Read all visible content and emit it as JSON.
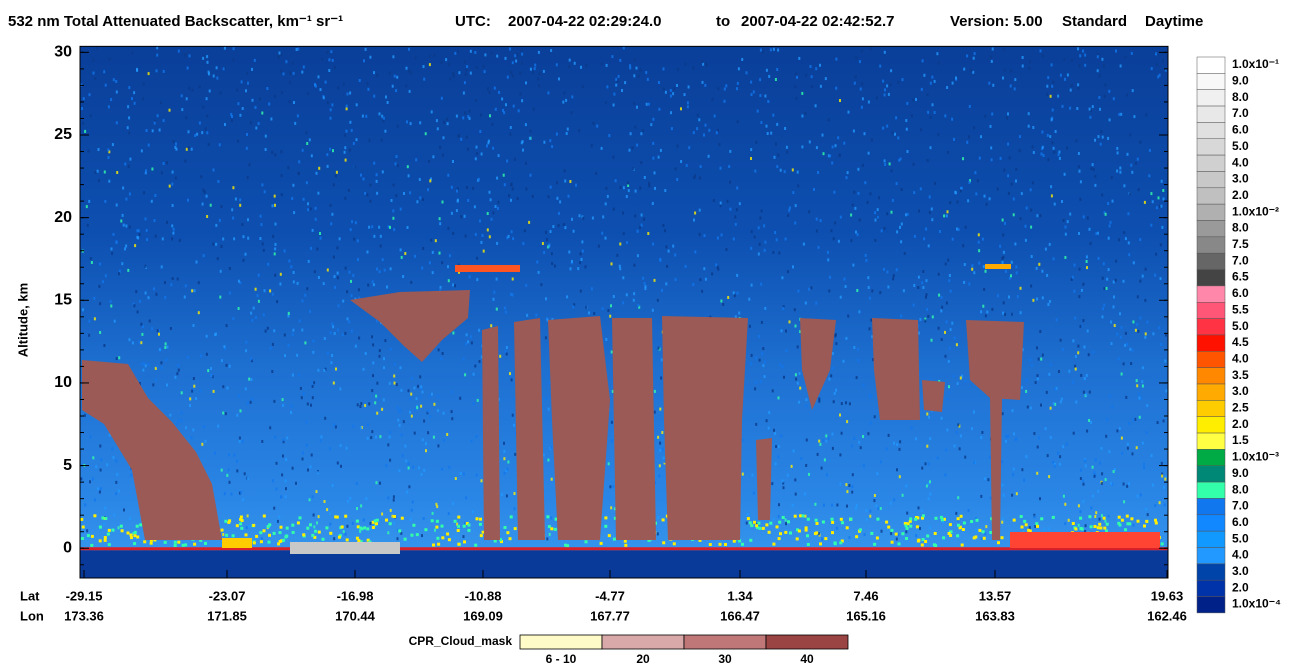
{
  "chart_data": {
    "type": "curtain",
    "title": "532 nm Total Attenuated Backscatter, km⁻¹ sr⁻¹",
    "utc_label": "UTC:",
    "start_time": "2007-04-22 02:29:24.0",
    "to_label": "to",
    "end_time": "2007-04-22 02:42:52.7",
    "version": "Version: 5.00",
    "product": "Standard",
    "daytime": "Daytime",
    "ylabel": "Altitude, km",
    "ylim": [
      -1.8,
      30
    ],
    "yticks": [
      0,
      5,
      10,
      15,
      20,
      25,
      30
    ],
    "lat_label": "Lat",
    "lon_label": "Lon",
    "lat": [
      -29.15,
      -23.07,
      -16.98,
      -10.88,
      -4.77,
      1.34,
      7.46,
      13.57,
      19.63
    ],
    "lon": [
      173.36,
      171.85,
      170.44,
      169.09,
      167.77,
      166.47,
      165.16,
      163.83,
      162.46
    ],
    "colorbar": {
      "labels": [
        "1.0x10⁻¹",
        "9.0",
        "8.0",
        "7.0",
        "6.0",
        "5.0",
        "4.0",
        "3.0",
        "2.0",
        "1.0x10⁻²",
        "8.0",
        "7.5",
        "7.0",
        "6.5",
        "6.0",
        "5.5",
        "5.0",
        "4.5",
        "4.0",
        "3.5",
        "3.0",
        "2.5",
        "2.0",
        "1.5",
        "1.0x10⁻³",
        "9.0",
        "8.0",
        "7.0",
        "6.0",
        "5.0",
        "4.0",
        "3.0",
        "2.0",
        "1.0x10⁻⁴"
      ],
      "colors": [
        "#ffffff",
        "#f8f8f8",
        "#f0f0f0",
        "#e8e8e8",
        "#e0e0e0",
        "#d8d8d8",
        "#d0d0d0",
        "#c8c8c8",
        "#c0c0c0",
        "#b0b0b0",
        "#9a9a9a",
        "#888888",
        "#666666",
        "#444444",
        "#ff88aa",
        "#ff5577",
        "#ff3344",
        "#ff1100",
        "#ff5500",
        "#ff8800",
        "#ffaa00",
        "#ffcc00",
        "#ffee00",
        "#ffff44",
        "#00aa44",
        "#008877",
        "#33ffaa",
        "#1177ee",
        "#1188ff",
        "#1199ff",
        "#2299ff",
        "#0044aa",
        "#0033aa",
        "#002288"
      ]
    },
    "cloud_mask": {
      "label": "CPR_Cloud_mask",
      "classes": [
        "6 - 10",
        "20",
        "30",
        "40"
      ],
      "colors": [
        "#fffbc8",
        "#d9a8a8",
        "#bf7777",
        "#9b4444"
      ]
    }
  }
}
